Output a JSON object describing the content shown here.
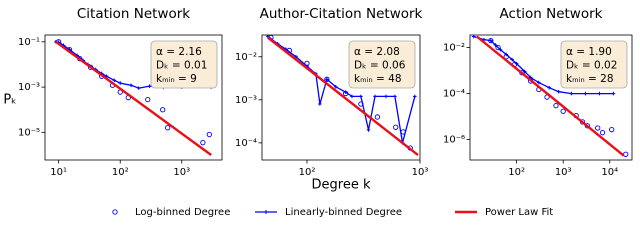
{
  "chart_data": [
    {
      "type": "line",
      "title": "Citation Network",
      "ylabel": "Pₖ",
      "xlog": true,
      "ylog": true,
      "xlim": [
        6,
        4500
      ],
      "ylim": [
        6e-07,
        0.2
      ],
      "xticks": [
        {
          "value": 10,
          "label": "10¹"
        },
        {
          "value": 100,
          "label": "10²"
        },
        {
          "value": 1000,
          "label": "10³"
        }
      ],
      "yticks": [
        {
          "value": 0.1,
          "label": "10⁻¹"
        },
        {
          "value": 0.001,
          "label": "10⁻³"
        },
        {
          "value": 1e-05,
          "label": "10⁻⁵"
        }
      ],
      "annotation": [
        "α = 2.16",
        "Dₖ = 0.01",
        "kₘᵢₙ = 9"
      ],
      "series": [
        {
          "name": "Log-binned Degree",
          "style": "markers",
          "color": "#0000ff",
          "x": [
            10,
            15,
            22,
            33,
            50,
            75,
            100,
            135,
            280,
            490,
            590,
            2200,
            2800
          ],
          "values": [
            0.1,
            0.045,
            0.018,
            0.0075,
            0.003,
            0.0012,
            0.0006,
            0.00034,
            0.00028,
            0.0001,
            1.6e-05,
            3.5e-06,
            8e-06
          ]
        },
        {
          "name": "Linearly-binned Degree",
          "style": "line-marker",
          "color": "#0000ff",
          "x": [
            9,
            10,
            12,
            15,
            20,
            25,
            30,
            40,
            50,
            60,
            80,
            100,
            150,
            200,
            300,
            500,
            1000,
            3000
          ],
          "values": [
            0.1,
            0.095,
            0.07,
            0.045,
            0.025,
            0.015,
            0.01,
            0.006,
            0.004,
            0.003,
            0.002,
            0.0015,
            0.0012,
            0.0009,
            0.0011,
            0.001,
            0.001,
            0.001
          ]
        },
        {
          "name": "Power Law Fit",
          "style": "line",
          "color": "#e8101a",
          "x": [
            9,
            3000
          ],
          "values": [
            0.1,
            1e-06
          ]
        }
      ]
    },
    {
      "type": "line",
      "title": "Author-Citation Network",
      "xlabel": "Degree k",
      "xlog": true,
      "ylog": true,
      "xlim": [
        40,
        1000
      ],
      "ylim": [
        4e-05,
        0.032
      ],
      "xticks": [
        {
          "value": 100,
          "label": "10²"
        },
        {
          "value": 1000,
          "label": "10³"
        }
      ],
      "yticks": [
        {
          "value": 0.01,
          "label": "10⁻²"
        },
        {
          "value": 0.001,
          "label": "10⁻³"
        },
        {
          "value": 0.0001,
          "label": "10⁻⁴"
        }
      ],
      "annotation": [
        "α = 2.08",
        "Dₖ = 0.06",
        "kₘᵢₙ = 48"
      ],
      "series": [
        {
          "name": "Log-binned Degree",
          "style": "markers",
          "color": "#0000ff",
          "x": [
            48,
            70,
            100,
            150,
            220,
            300,
            420,
            610,
            710,
            820
          ],
          "values": [
            0.028,
            0.014,
            0.007,
            0.003,
            0.0014,
            0.0008,
            0.0004,
            0.00023,
            0.00018,
            7.6e-05
          ]
        },
        {
          "name": "Linearly-binned Degree",
          "style": "line-marker",
          "color": "#0000ff",
          "x": [
            45,
            55,
            65,
            80,
            100,
            120,
            130,
            150,
            180,
            220,
            250,
            300,
            350,
            400,
            500,
            600,
            700,
            900
          ],
          "values": [
            0.03,
            0.02,
            0.015,
            0.01,
            0.006,
            0.004,
            0.0008,
            0.003,
            0.002,
            0.0015,
            0.0012,
            0.0012,
            0.0002,
            0.0012,
            0.0012,
            0.0012,
            0.0001,
            0.0012
          ]
        },
        {
          "name": "Power Law Fit",
          "style": "line",
          "color": "#e8101a",
          "x": [
            45,
            960
          ],
          "values": [
            0.028,
            5.2e-05
          ]
        }
      ]
    },
    {
      "type": "line",
      "title": "Action Network",
      "xlog": true,
      "ylog": true,
      "xlim": [
        10,
        30000
      ],
      "ylim": [
        1.3e-07,
        0.035
      ],
      "xticks": [
        {
          "value": 100,
          "label": "10²"
        },
        {
          "value": 1000,
          "label": "10³"
        },
        {
          "value": 10000,
          "label": "10⁴"
        }
      ],
      "yticks": [
        {
          "value": 0.01,
          "label": "10⁻²"
        },
        {
          "value": 0.0001,
          "label": "10⁻⁴"
        },
        {
          "value": 1e-06,
          "label": "10⁻⁶"
        }
      ],
      "annotation": [
        "α = 1.90",
        "Dₖ = 0.02",
        "kₘᵢₙ = 28"
      ],
      "series": [
        {
          "name": "Log-binned Degree",
          "style": "markers",
          "color": "#0000ff",
          "x": [
            28,
            40,
            60,
            90,
            130,
            200,
            300,
            450,
            700,
            1000,
            1900,
            2600,
            3300,
            5500,
            7000,
            11000,
            22000
          ],
          "values": [
            0.02,
            0.01,
            0.004,
            0.0018,
            0.0008,
            0.00035,
            0.00015,
            7e-05,
            3e-05,
            1.7e-05,
            1.1e-05,
            5.9e-06,
            4e-06,
            3.2e-06,
            2e-06,
            2.7e-06,
            2.3e-07
          ]
        },
        {
          "name": "Linearly-binned Degree",
          "style": "line-marker",
          "color": "#0000ff",
          "x": [
            12,
            20,
            28,
            35,
            45,
            60,
            80,
            100,
            150,
            200,
            300,
            500,
            800,
            1500,
            3000,
            6000,
            12000
          ],
          "values": [
            0.03,
            0.022,
            0.02,
            0.013,
            0.008,
            0.005,
            0.003,
            0.002,
            0.0009,
            0.0005,
            0.0003,
            0.00018,
            0.00012,
            0.0001,
            0.0001,
            0.0001,
            0.0001
          ]
        },
        {
          "name": "Power Law Fit",
          "style": "line",
          "color": "#e8101a",
          "x": [
            14,
            20000
          ],
          "values": [
            0.03,
            2e-07
          ]
        }
      ]
    }
  ]
}
